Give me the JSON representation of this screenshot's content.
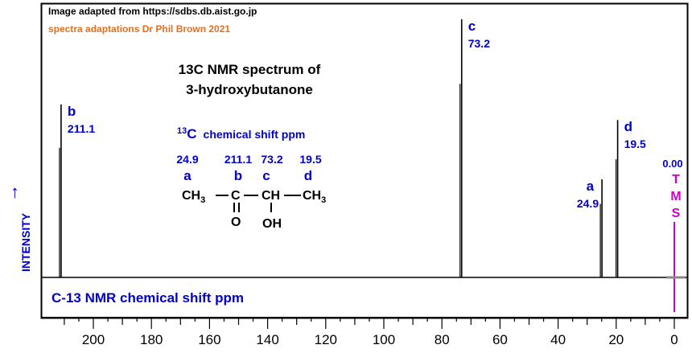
{
  "credits": {
    "source": "Image adapted from https://sdbs.db.aist.go.jp",
    "author": "spectra adaptations Dr Phil Brown 2021"
  },
  "chart_data": {
    "type": "line",
    "title_line1": "13C NMR spectrum of",
    "title_line2": "3-hydroxybutanone",
    "xlabel": "C-13 NMR chemical shift ppm",
    "ylabel": "INTENSITY",
    "ylabel_arrow": "→",
    "xlim": [
      213,
      -4
    ],
    "x_reversed": true,
    "x_ticks": [
      200,
      180,
      160,
      140,
      120,
      100,
      80,
      60,
      40,
      20,
      0
    ],
    "peaks": [
      {
        "id": "b",
        "shift": 211.1,
        "label": "b",
        "value_label": "211.1",
        "relative_height": 0.67
      },
      {
        "id": "c",
        "shift": 73.2,
        "label": "c",
        "value_label": "73.2",
        "relative_height": 1.0
      },
      {
        "id": "a",
        "shift": 24.9,
        "label": "a",
        "value_label": "24.9",
        "relative_height": 0.38
      },
      {
        "id": "d",
        "shift": 19.5,
        "label": "d",
        "value_label": "19.5",
        "relative_height": 0.61
      }
    ],
    "tms": {
      "shift": 0.0,
      "value_label": "0.00",
      "letters": [
        "T",
        "M",
        "S"
      ]
    },
    "colors": {
      "peak": "#000000",
      "label": "#0000cc",
      "tms": "#cc00cc",
      "credit": "#e07020"
    }
  },
  "structure": {
    "heading_sup": "13",
    "heading_main": "C",
    "heading_rest": "chemical shift ppm",
    "shifts": [
      "24.9",
      "211.1",
      "73.2",
      "19.5"
    ],
    "letters": [
      "a",
      "b",
      "c",
      "d"
    ],
    "groups": [
      "CH",
      "3",
      "C",
      "CH",
      "CH",
      "3"
    ],
    "oxygen": "O",
    "hydroxyl": "OH"
  }
}
